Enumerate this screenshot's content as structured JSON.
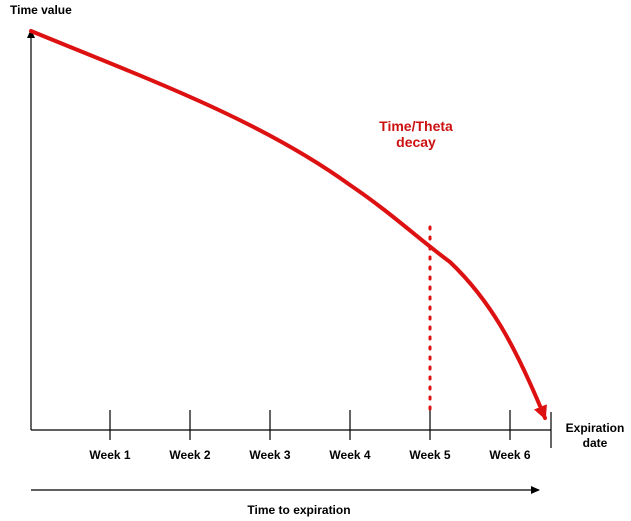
{
  "diagram": {
    "y_axis_label": "Time value",
    "x_axis_end_label_line1": "Expiration",
    "x_axis_end_label_line2": "date",
    "bottom_arrow_label": "Time to expiration",
    "curve_label_line1": "Time/Theta",
    "curve_label_line2": "decay",
    "week_ticks": [
      "Week 1",
      "Week 2",
      "Week 3",
      "Week 4",
      "Week 5",
      "Week 6"
    ],
    "highlighted_week": "Week 5"
  },
  "colors": {
    "curve": "#dd1111",
    "axis": "#000000",
    "marker_line": "#dd1111",
    "curve_label": "#cc1111"
  }
}
